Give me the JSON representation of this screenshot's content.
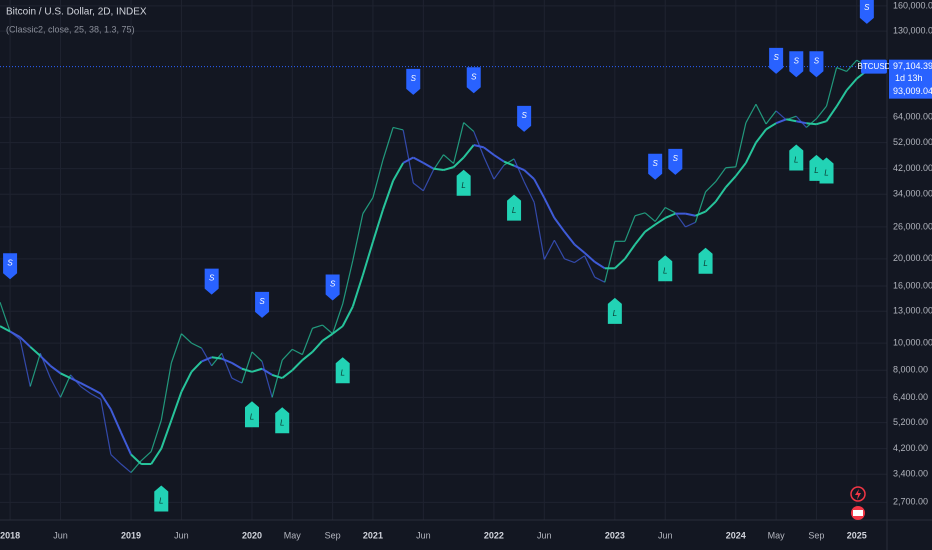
{
  "chart_data": {
    "type": "line",
    "title": "Bitcoin / U.S. Dollar, 2D, INDEX",
    "subtitle": "(Classic2, close, 25, 38, 1.3, 75)",
    "log_scale": true,
    "grid": true,
    "x": [
      "2017-12",
      "2018-01",
      "2018-02",
      "2018-03",
      "2018-04",
      "2018-05",
      "2018-06",
      "2018-07",
      "2018-08",
      "2018-09",
      "2018-10",
      "2018-11",
      "2018-12",
      "2019-01",
      "2019-02",
      "2019-03",
      "2019-04",
      "2019-05",
      "2019-06",
      "2019-07",
      "2019-08",
      "2019-09",
      "2019-10",
      "2019-11",
      "2019-12",
      "2020-01",
      "2020-02",
      "2020-03",
      "2020-04",
      "2020-05",
      "2020-06",
      "2020-07",
      "2020-08",
      "2020-09",
      "2020-10",
      "2020-11",
      "2020-12",
      "2021-01",
      "2021-02",
      "2021-03",
      "2021-04",
      "2021-05",
      "2021-06",
      "2021-07",
      "2021-08",
      "2021-09",
      "2021-10",
      "2021-11",
      "2021-12",
      "2022-01",
      "2022-02",
      "2022-03",
      "2022-04",
      "2022-05",
      "2022-06",
      "2022-07",
      "2022-08",
      "2022-09",
      "2022-10",
      "2022-11",
      "2022-12",
      "2023-01",
      "2023-02",
      "2023-03",
      "2023-04",
      "2023-05",
      "2023-06",
      "2023-07",
      "2023-08",
      "2023-09",
      "2023-10",
      "2023-11",
      "2023-12",
      "2024-01",
      "2024-02",
      "2024-03",
      "2024-04",
      "2024-05",
      "2024-06",
      "2024-07",
      "2024-08",
      "2024-09",
      "2024-10",
      "2024-11",
      "2024-12",
      "2025-01",
      "2025-02"
    ],
    "up_color": "#27c49b",
    "down_color": "#3f5bd8",
    "series": [
      {
        "name": "BTCUSD",
        "values": [
          14000,
          11000,
          10300,
          7000,
          9200,
          7500,
          6400,
          7700,
          7000,
          6600,
          6300,
          4000,
          3700,
          3450,
          3800,
          4100,
          5300,
          8500,
          10800,
          10000,
          9600,
          8300,
          9200,
          7500,
          7200,
          9300,
          8600,
          6400,
          8700,
          9500,
          9100,
          11300,
          11600,
          10800,
          13800,
          19700,
          29000,
          33100,
          45200,
          58900,
          57700,
          37300,
          35000,
          41500,
          47100,
          43800,
          61300,
          57000,
          46300,
          38500,
          43200,
          45500,
          37700,
          31800,
          19900,
          23300,
          20000,
          19400,
          20500,
          17200,
          16500,
          23100,
          23100,
          28500,
          29200,
          27200,
          30500,
          29200,
          26000,
          27000,
          34700,
          37700,
          42300,
          42600,
          61200,
          71300,
          60600,
          67500,
          62700,
          64600,
          58900,
          63300,
          70200,
          96400,
          93400,
          102400,
          97100
        ]
      },
      {
        "values": [
          11500,
          11000,
          10500,
          9700,
          9000,
          8300,
          7800,
          7500,
          7200,
          6900,
          6600,
          5800,
          4800,
          4000,
          3700,
          3700,
          4200,
          5300,
          6700,
          7900,
          8600,
          8900,
          8800,
          8500,
          8100,
          7900,
          8100,
          7700,
          7500,
          8000,
          8700,
          9300,
          10200,
          10800,
          11500,
          13500,
          17500,
          23000,
          30000,
          38000,
          44000,
          46000,
          44000,
          42000,
          41500,
          42500,
          46000,
          51000,
          50000,
          47000,
          44500,
          43000,
          41500,
          38500,
          33000,
          28000,
          25000,
          22500,
          21000,
          19500,
          18500,
          18500,
          20000,
          22500,
          25000,
          26500,
          28000,
          29000,
          29000,
          28500,
          29500,
          32000,
          36000,
          39500,
          44000,
          52000,
          58000,
          61000,
          63000,
          62000,
          61000,
          60500,
          62000,
          70000,
          80000,
          88000,
          94000
        ]
      }
    ],
    "signals": [
      {
        "name": "S",
        "color": "#2962ff",
        "x": [
          "2018-01",
          "2019-09",
          "2020-02",
          "2020-09",
          "2021-05",
          "2021-11",
          "2022-04",
          "2023-05",
          "2023-07",
          "2024-05",
          "2024-07",
          "2024-09",
          "2025-02"
        ],
        "values": [
          16900,
          14900,
          12300,
          14200,
          77000,
          78000,
          56800,
          38300,
          39900,
          91500,
          89000,
          89000,
          138000
        ]
      },
      {
        "name": "L",
        "color": "#22d3b5",
        "x": [
          "2019-04",
          "2020-01",
          "2020-04",
          "2020-10",
          "2021-10",
          "2022-03",
          "2023-01",
          "2023-06",
          "2023-10",
          "2024-07",
          "2024-09",
          "2024-10"
        ],
        "values": [
          3100,
          6200,
          5900,
          8900,
          41600,
          33900,
          14500,
          20600,
          21900,
          51200,
          47000,
          46000
        ]
      }
    ],
    "xlim": [
      "2017-12",
      "2025-04"
    ],
    "xticks": [
      {
        "value": "2018-01",
        "label": "2018"
      },
      {
        "value": "2018-06",
        "label": "Jun"
      },
      {
        "value": "2019-01",
        "label": "2019"
      },
      {
        "value": "2019-06",
        "label": "Jun"
      },
      {
        "value": "2020-01",
        "label": "2020"
      },
      {
        "value": "2020-05",
        "label": "May"
      },
      {
        "value": "2020-09",
        "label": "Sep"
      },
      {
        "value": "2021-01",
        "label": "2021"
      },
      {
        "value": "2021-06",
        "label": "Jun"
      },
      {
        "value": "2022-01",
        "label": "2022"
      },
      {
        "value": "2022-06",
        "label": "Jun"
      },
      {
        "value": "2023-01",
        "label": "2023"
      },
      {
        "value": "2023-06",
        "label": "Jun"
      },
      {
        "value": "2024-01",
        "label": "2024"
      },
      {
        "value": "2024-05",
        "label": "May"
      },
      {
        "value": "2024-09",
        "label": "Sep"
      },
      {
        "value": "2025-01",
        "label": "2025"
      }
    ],
    "ylim": [
      2335,
      168000
    ],
    "yticks": [
      {
        "value": 2700,
        "label": "2,700.00"
      },
      {
        "value": 3400,
        "label": "3,400.00"
      },
      {
        "value": 4200,
        "label": "4,200.00"
      },
      {
        "value": 5200,
        "label": "5,200.00"
      },
      {
        "value": 6400,
        "label": "6,400.00"
      },
      {
        "value": 8000,
        "label": "8,000.00"
      },
      {
        "value": 10000,
        "label": "10,000.00"
      },
      {
        "value": 13000,
        "label": "13,000.00"
      },
      {
        "value": 16000,
        "label": "16,000.00"
      },
      {
        "value": 20000,
        "label": "20,000.00"
      },
      {
        "value": 26000,
        "label": "26,000.00"
      },
      {
        "value": 34000,
        "label": "34,000.00"
      },
      {
        "value": 42000,
        "label": "42,000.00"
      },
      {
        "value": 52000,
        "label": "52,000.00"
      },
      {
        "value": 64000,
        "label": "64,000.00"
      },
      {
        "value": 130000,
        "label": "130,000.00"
      },
      {
        "value": 160000,
        "label": "160,000.00"
      }
    ],
    "last_price": {
      "value": 97104.39,
      "label": "97,104.39"
    },
    "countdown": "1d 13h",
    "ma_price": {
      "value": 93009.04,
      "label": "93,009.04"
    }
  }
}
